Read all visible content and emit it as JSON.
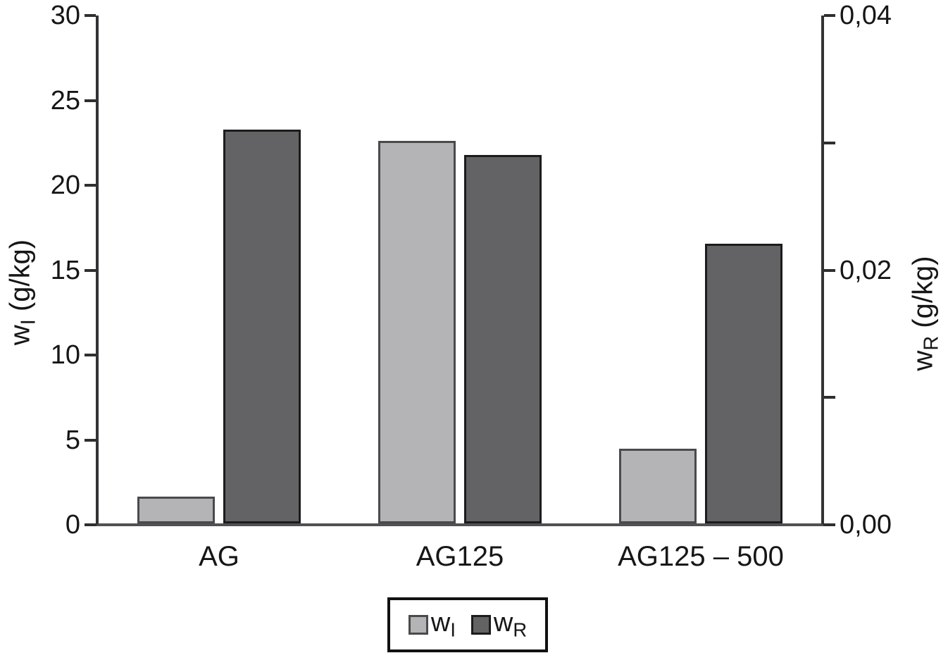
{
  "figure": {
    "background": "#ffffff",
    "text_color": "#161616",
    "axis_color": "#333335"
  },
  "chart_data": {
    "type": "bar",
    "title": "",
    "categories": [
      "AG",
      "AG125",
      "AG125 – 500"
    ],
    "series": [
      {
        "name": "wI",
        "legend_base": "w",
        "legend_sub": "I",
        "axis": "left",
        "values": [
          1.6,
          22.6,
          4.4
        ],
        "fill": "#b4b4b7",
        "border": "#4a4a4c"
      },
      {
        "name": "wR",
        "legend_base": "w",
        "legend_sub": "R",
        "axis": "right",
        "values": [
          0.031,
          0.029,
          0.022
        ],
        "fill": "#636366",
        "border": "#1c1c1c"
      }
    ],
    "left_axis": {
      "title_base": "w",
      "title_sub": "I",
      "title_rest": " (g/kg)",
      "min": 0,
      "max": 30,
      "tick_values": [
        0,
        5,
        10,
        15,
        20,
        25,
        30
      ],
      "tick_labels": [
        "0",
        "5",
        "10",
        "15",
        "20",
        "25",
        "30"
      ]
    },
    "right_axis": {
      "title_base": "w",
      "title_sub": "R",
      "title_rest": " (g/kg)",
      "min": 0,
      "max": 0.04,
      "tick_values": [
        0,
        0.01,
        0.02,
        0.03,
        0.04
      ],
      "tick_labels": [
        "0,00",
        "",
        "0,02",
        "",
        "0,04"
      ]
    },
    "legend_position": "bottom",
    "grid": false
  }
}
